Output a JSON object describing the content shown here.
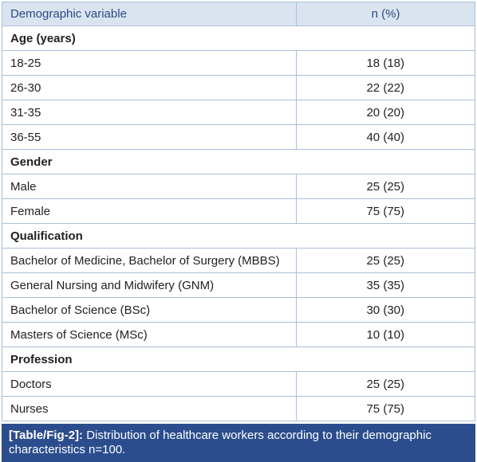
{
  "table": {
    "header": [
      "Demographic variable",
      "n (%)"
    ],
    "sections": [
      {
        "title": "Age (years)",
        "rows": [
          [
            "18-25",
            "18 (18)"
          ],
          [
            "26-30",
            "22 (22)"
          ],
          [
            "31-35",
            "20 (20)"
          ],
          [
            "36-55",
            "40 (40)"
          ]
        ]
      },
      {
        "title": "Gender",
        "rows": [
          [
            "Male",
            "25 (25)"
          ],
          [
            "Female",
            "75 (75)"
          ]
        ]
      },
      {
        "title": "Qualification",
        "rows": [
          [
            "Bachelor of Medicine, Bachelor of Surgery (MBBS)",
            "25 (25)"
          ],
          [
            "General Nursing and Midwifery (GNM)",
            "35 (35)"
          ],
          [
            "Bachelor of Science (BSc)",
            "30 (30)"
          ],
          [
            "Masters of Science (MSc)",
            "10 (10)"
          ]
        ]
      },
      {
        "title": "Profession",
        "rows": [
          [
            "Doctors",
            "25 (25)"
          ],
          [
            "Nurses",
            "75 (75)"
          ]
        ]
      }
    ]
  },
  "caption": {
    "label": "[Table/Fig-2]:",
    "text": "Distribution of healthcare workers according to their demographic characteristics n=100."
  }
}
